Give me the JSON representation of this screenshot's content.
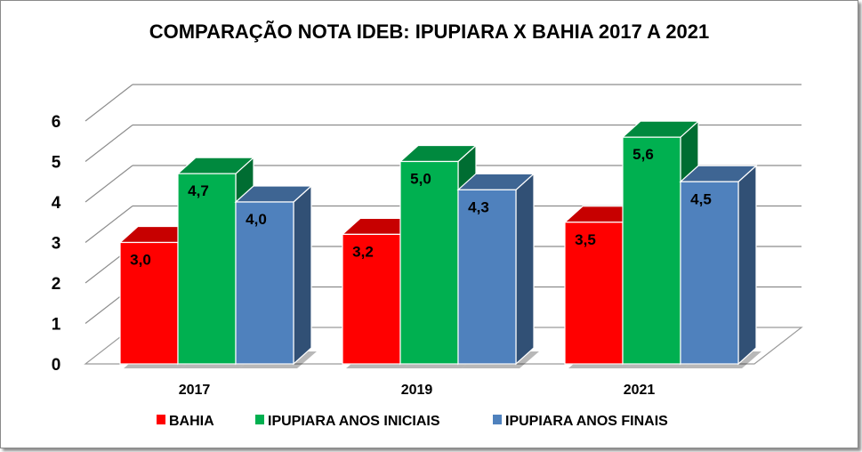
{
  "chart_data": {
    "type": "bar",
    "title": "COMPARAÇÃO NOTA IDEB: IPUPIARA X BAHIA 2017 A 2021",
    "categories": [
      "2017",
      "2019",
      "2021"
    ],
    "series": [
      {
        "name": "BAHIA",
        "values": [
          3.0,
          3.2,
          3.5
        ],
        "labels": [
          "3,0",
          "3,2",
          "3,5"
        ],
        "color": "#ff0000"
      },
      {
        "name": "IPUPIARA ANOS INICIAIS",
        "values": [
          4.7,
          5.0,
          5.6
        ],
        "labels": [
          "4,7",
          "5,0",
          "5,6"
        ],
        "color": "#00b050"
      },
      {
        "name": "IPUPIARA ANOS FINAIS",
        "values": [
          4.0,
          4.3,
          4.5
        ],
        "labels": [
          "4,0",
          "4,3",
          "4,5"
        ],
        "color": "#4f81bd"
      }
    ],
    "ylim": [
      0,
      6
    ],
    "yticks": [
      "0",
      "1",
      "2",
      "3",
      "4",
      "5",
      "6"
    ],
    "grid": true,
    "legend": "bottom",
    "style": "3d-clustered-column"
  }
}
